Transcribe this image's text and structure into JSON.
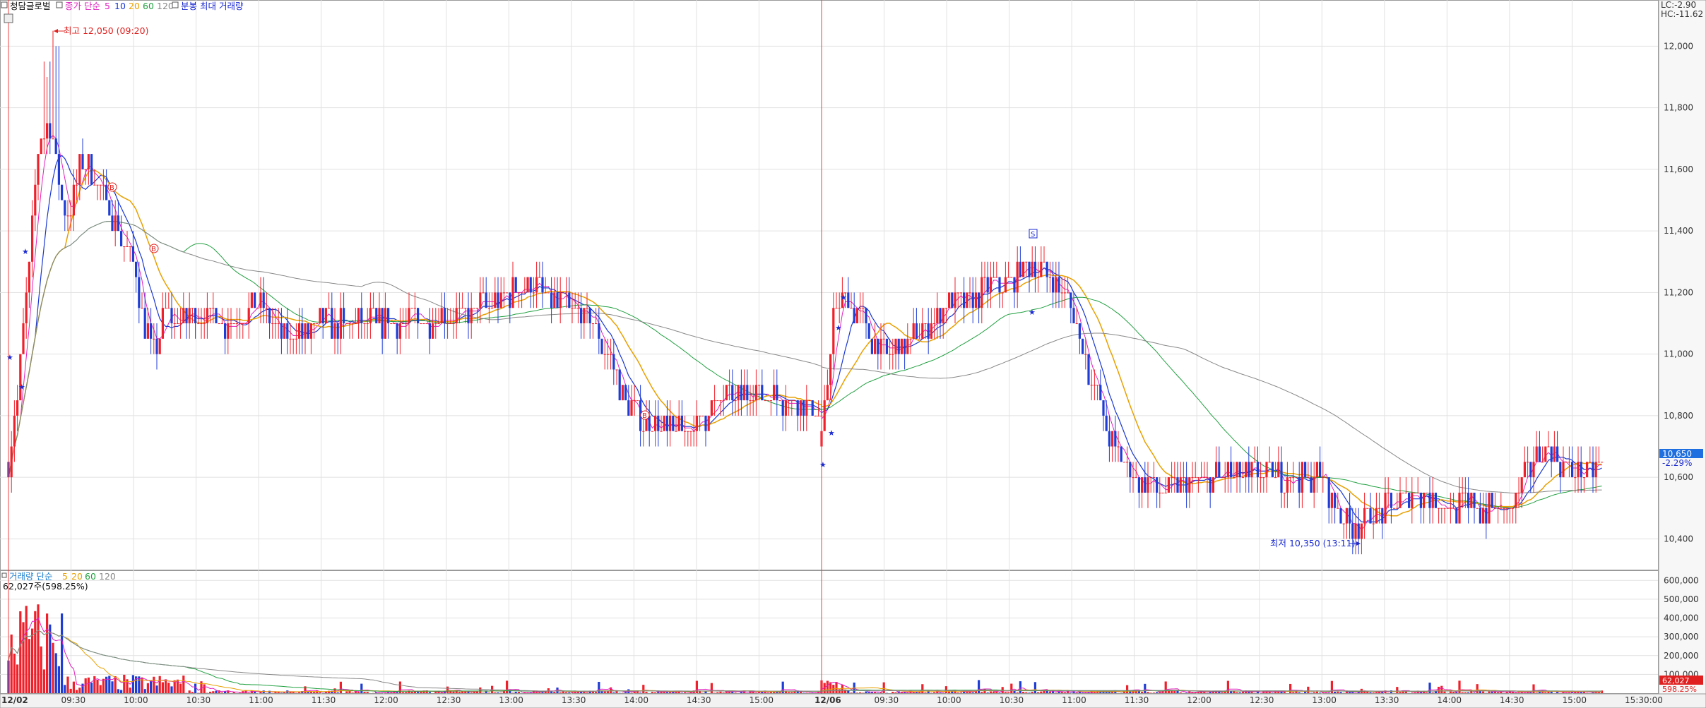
{
  "legend": {
    "security": "청담글로벌",
    "price_label": "종가 단순",
    "ma_periods": [
      "5",
      "10",
      "20",
      "60",
      "120"
    ],
    "extra": "분봉 최대 거래량",
    "volume_label": "거래량 단순",
    "volume_ma_periods": [
      "5",
      "20",
      "60",
      "120"
    ],
    "volume_current": "62,027주(598.25%)"
  },
  "corner": {
    "lc": "LC:-2.90",
    "hc": "HC:-11.62"
  },
  "annotations": {
    "high": "최고 12,050 (09:20)",
    "low": "최저 10,350 (13:11)",
    "current_price": "10,650",
    "current_change": "-2.29%",
    "volume_tag": "62,027",
    "volume_pct": "598.25%"
  },
  "signals": [
    "B",
    "B",
    "B",
    "S"
  ],
  "colors": {
    "up": "#f0202a",
    "down": "#1e3dd6",
    "ma5": "#e020c0",
    "ma10": "#1a37d0",
    "ma20": "#e8a000",
    "ma60": "#20a040",
    "ma120": "#888888",
    "tag": "#1f6fe0"
  },
  "chart_data": {
    "type": "candlestick",
    "title": "청담글로벌",
    "interval": "분봉",
    "ylim": [
      10300,
      12150
    ],
    "y_ticks": [
      "10,400",
      "10,600",
      "10,800",
      "11,000",
      "11,200",
      "11,400",
      "11,600",
      "11,800",
      "12,000"
    ],
    "volume_ylim": [
      0,
      650000
    ],
    "volume_ticks": [
      "100,000",
      "200,000",
      "300,000",
      "400,000",
      "500,000",
      "600,000"
    ],
    "x_ticks": [
      "12/02",
      "09:30",
      "10:00",
      "10:30",
      "11:00",
      "11:30",
      "12:00",
      "12:30",
      "13:00",
      "13:30",
      "14:00",
      "14:30",
      "15:00",
      "12/06",
      "09:30",
      "10:00",
      "10:30",
      "11:00",
      "11:30",
      "12:00",
      "12:30",
      "13:00",
      "13:30",
      "14:00",
      "14:30",
      "15:00",
      "15:30:00"
    ],
    "sessions": [
      {
        "date": "12/02",
        "close_path": [
          [
            "09:00",
            10650
          ],
          [
            "09:05",
            10900
          ],
          [
            "09:10",
            11300
          ],
          [
            "09:15",
            11700
          ],
          [
            "09:20",
            11750
          ],
          [
            "09:25",
            11500
          ],
          [
            "09:30",
            11450
          ],
          [
            "09:35",
            11650
          ],
          [
            "09:40",
            11600
          ],
          [
            "09:45",
            11500
          ],
          [
            "09:50",
            11450
          ],
          [
            "09:55",
            11350
          ],
          [
            "10:00",
            11300
          ],
          [
            "10:05",
            11100
          ],
          [
            "10:10",
            11000
          ],
          [
            "10:15",
            11150
          ],
          [
            "10:20",
            11100
          ],
          [
            "10:30",
            11150
          ],
          [
            "10:45",
            11100
          ],
          [
            "11:00",
            11150
          ],
          [
            "11:15",
            11050
          ],
          [
            "11:30",
            11100
          ],
          [
            "11:45",
            11100
          ],
          [
            "12:00",
            11100
          ],
          [
            "12:30",
            11120
          ],
          [
            "12:45",
            11150
          ],
          [
            "13:00",
            11200
          ],
          [
            "13:10",
            11220
          ],
          [
            "13:20",
            11180
          ],
          [
            "13:30",
            11150
          ],
          [
            "13:40",
            11100
          ],
          [
            "13:50",
            10950
          ],
          [
            "14:00",
            10800
          ],
          [
            "14:15",
            10750
          ],
          [
            "14:30",
            10780
          ],
          [
            "14:45",
            10850
          ],
          [
            "15:00",
            10880
          ],
          [
            "15:15",
            10850
          ],
          [
            "15:30",
            10820
          ]
        ]
      },
      {
        "date": "12/06",
        "close_path": [
          [
            "09:00",
            10700
          ],
          [
            "09:05",
            11100
          ],
          [
            "09:10",
            11200
          ],
          [
            "09:20",
            11100
          ],
          [
            "09:30",
            11000
          ],
          [
            "09:45",
            11050
          ],
          [
            "10:00",
            11150
          ],
          [
            "10:15",
            11200
          ],
          [
            "10:30",
            11250
          ],
          [
            "10:40",
            11300
          ],
          [
            "10:50",
            11250
          ],
          [
            "11:00",
            11150
          ],
          [
            "11:10",
            10900
          ],
          [
            "11:20",
            10700
          ],
          [
            "11:30",
            10600
          ],
          [
            "11:45",
            10550
          ],
          [
            "12:00",
            10600
          ],
          [
            "12:30",
            10600
          ],
          [
            "13:00",
            10600
          ],
          [
            "13:11",
            10450
          ],
          [
            "13:20",
            10450
          ],
          [
            "13:30",
            10500
          ],
          [
            "13:45",
            10550
          ],
          [
            "14:00",
            10500
          ],
          [
            "14:30",
            10500
          ],
          [
            "14:45",
            10700
          ],
          [
            "15:00",
            10600
          ],
          [
            "15:15",
            10650
          ]
        ]
      }
    ],
    "day_high": {
      "value": 12050,
      "time": "09:20"
    },
    "day_low": {
      "value": 10350,
      "time": "13:11"
    },
    "last_price": 10650,
    "last_change_pct": -2.29,
    "last_volume": 62027
  }
}
